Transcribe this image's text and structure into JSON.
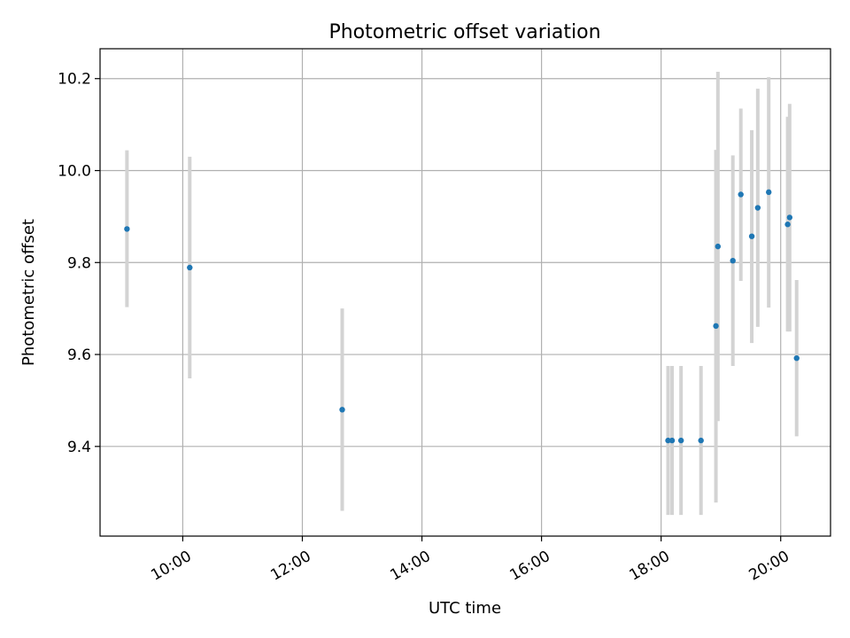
{
  "chart_data": {
    "type": "scatter",
    "title": "Photometric offset variation",
    "xlabel": "UTC time",
    "ylabel": "Photometric offset",
    "x_axis_type": "time",
    "xlim": [
      "08:37",
      "20:50"
    ],
    "ylim": [
      9.205,
      10.265
    ],
    "grid": true,
    "x_ticks": [
      "10:00",
      "12:00",
      "14:00",
      "16:00",
      "18:00",
      "20:00"
    ],
    "y_ticks": [
      9.4,
      9.6,
      9.8,
      10.0,
      10.2
    ],
    "y_tick_labels": [
      "9.4",
      "9.6",
      "9.8",
      "10.0",
      "10.2"
    ],
    "points": [
      {
        "x": "09:04",
        "y": 9.873,
        "err_low": 9.703,
        "err_high": 10.044
      },
      {
        "x": "10:07",
        "y": 9.789,
        "err_low": 9.548,
        "err_high": 10.03
      },
      {
        "x": "12:40",
        "y": 9.48,
        "err_low": 9.26,
        "err_high": 9.7
      },
      {
        "x": "18:07",
        "y": 9.413,
        "err_low": 9.251,
        "err_high": 9.575
      },
      {
        "x": "18:11",
        "y": 9.413,
        "err_low": 9.251,
        "err_high": 9.575
      },
      {
        "x": "18:20",
        "y": 9.413,
        "err_low": 9.251,
        "err_high": 9.575
      },
      {
        "x": "18:40",
        "y": 9.413,
        "err_low": 9.251,
        "err_high": 9.575
      },
      {
        "x": "18:55",
        "y": 9.662,
        "err_low": 9.278,
        "err_high": 10.045
      },
      {
        "x": "18:57",
        "y": 9.835,
        "err_low": 9.455,
        "err_high": 10.215
      },
      {
        "x": "19:12",
        "y": 9.804,
        "err_low": 9.575,
        "err_high": 10.033
      },
      {
        "x": "19:20",
        "y": 9.948,
        "err_low": 9.76,
        "err_high": 10.135
      },
      {
        "x": "19:31",
        "y": 9.857,
        "err_low": 9.625,
        "err_high": 10.088
      },
      {
        "x": "19:37",
        "y": 9.919,
        "err_low": 9.66,
        "err_high": 10.178
      },
      {
        "x": "19:48",
        "y": 9.953,
        "err_low": 9.702,
        "err_high": 10.203
      },
      {
        "x": "20:07",
        "y": 9.883,
        "err_low": 9.65,
        "err_high": 10.117
      },
      {
        "x": "20:09",
        "y": 9.898,
        "err_low": 9.65,
        "err_high": 10.145
      },
      {
        "x": "20:16",
        "y": 9.592,
        "err_low": 9.422,
        "err_high": 9.762
      }
    ],
    "marker_color": "#1f77b4",
    "errorbar_color": "#d3d3d3",
    "grid_color": "#b0b0b0"
  }
}
